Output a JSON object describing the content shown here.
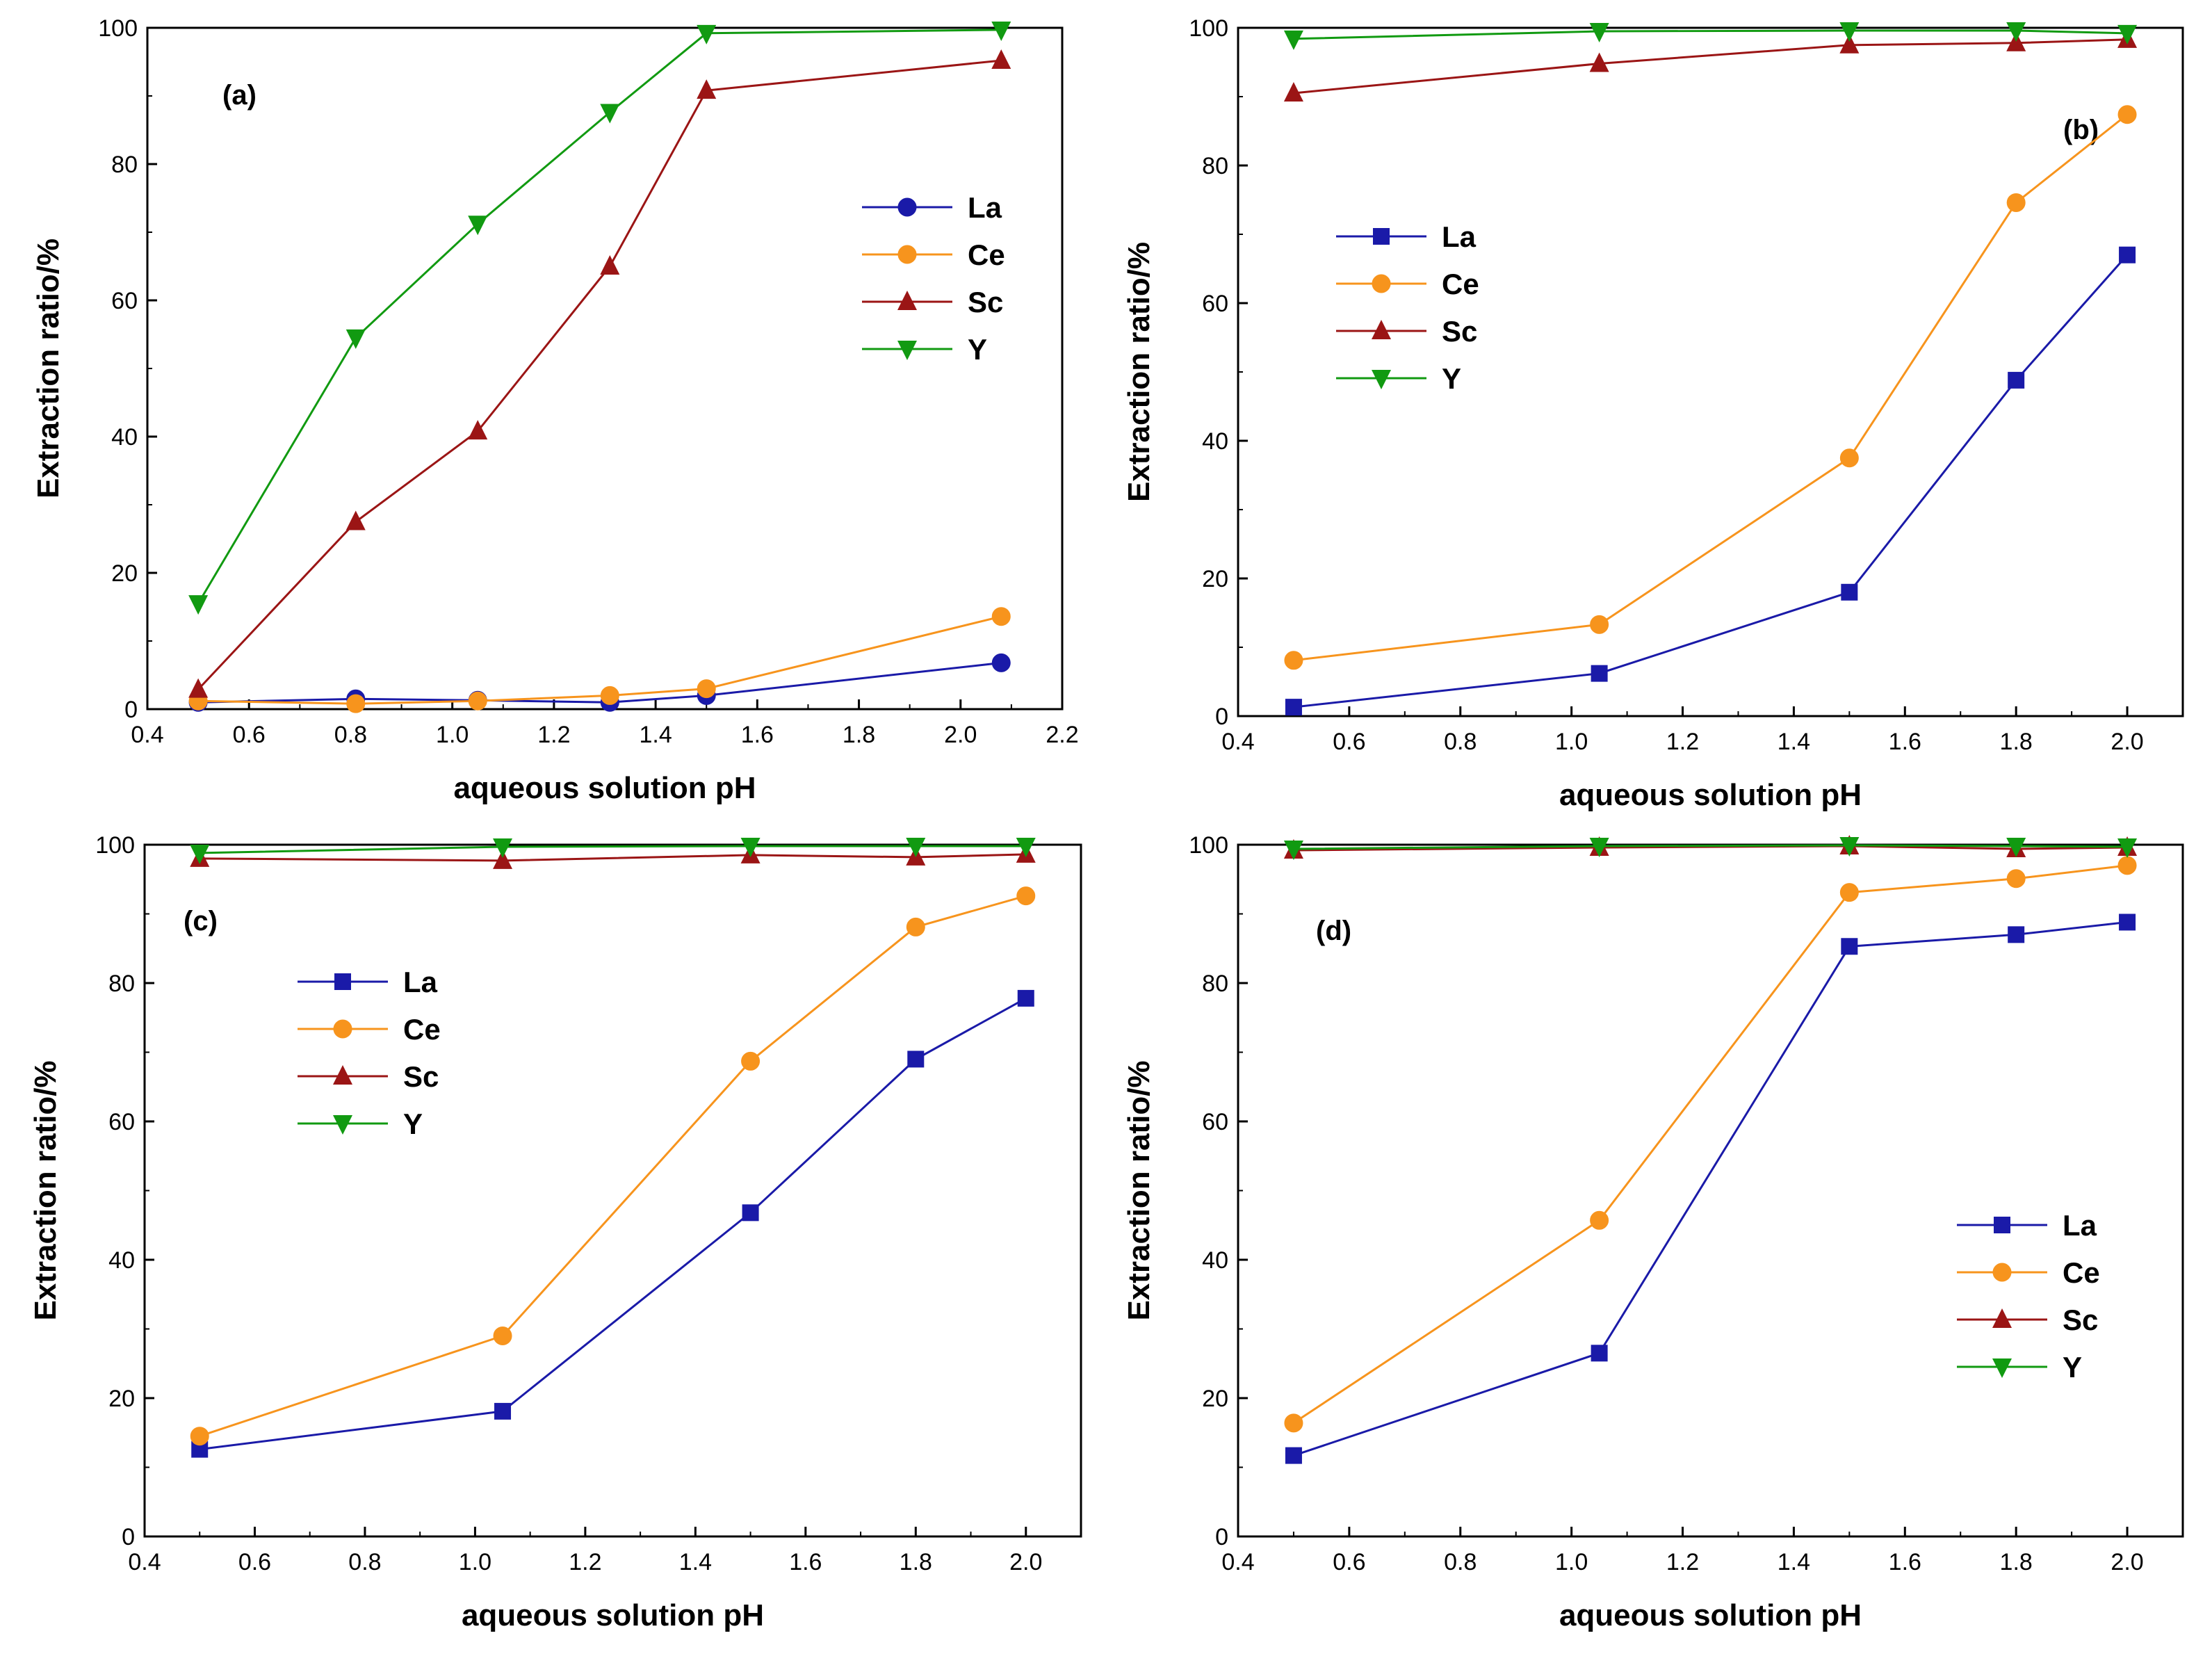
{
  "chart_data": [
    {
      "type": "line",
      "panel_label": "(a)",
      "xlabel": "aqueous solution pH",
      "ylabel": "Extraction ratio/%",
      "xlim": [
        0.4,
        2.2
      ],
      "ylim": [
        0,
        100
      ],
      "x_ticks": [
        "0.4",
        "0.6",
        "0.8",
        "1.0",
        "1.2",
        "1.4",
        "1.6",
        "1.8",
        "2.0",
        "2.2"
      ],
      "y_ticks": [
        "0",
        "20",
        "40",
        "60",
        "80",
        "100"
      ],
      "legend_position": "upper-right",
      "series": [
        {
          "name": "La",
          "marker": "circle",
          "x": [
            0.5,
            0.81,
            1.05,
            1.31,
            1.5,
            2.08
          ],
          "values": [
            1.0,
            1.5,
            1.3,
            1.0,
            2.0,
            6.8
          ]
        },
        {
          "name": "Ce",
          "marker": "circle",
          "x": [
            0.5,
            0.81,
            1.05,
            1.31,
            1.5,
            2.08
          ],
          "values": [
            1.2,
            0.8,
            1.2,
            2.0,
            3.0,
            13.6
          ]
        },
        {
          "name": "Sc",
          "marker": "triangle-up",
          "x": [
            0.5,
            0.81,
            1.05,
            1.31,
            1.5,
            2.08
          ],
          "values": [
            2.9,
            27.5,
            40.8,
            65.0,
            90.8,
            95.2
          ]
        },
        {
          "name": "Y",
          "marker": "triangle-down",
          "x": [
            0.5,
            0.81,
            1.05,
            1.31,
            1.5,
            2.08
          ],
          "values": [
            15.5,
            54.5,
            71.2,
            87.6,
            99.2,
            99.7
          ]
        }
      ]
    },
    {
      "type": "line",
      "panel_label": "(b)",
      "xlabel": "aqueous solution pH",
      "ylabel": "Extraction ratio/%",
      "xlim": [
        0.4,
        2.1
      ],
      "ylim": [
        0,
        100
      ],
      "x_ticks": [
        "0.4",
        "0.6",
        "0.8",
        "1.0",
        "1.2",
        "1.4",
        "1.6",
        "1.8",
        "2.0"
      ],
      "y_ticks": [
        "0",
        "20",
        "40",
        "60",
        "80",
        "100"
      ],
      "legend_position": "middle-left",
      "series": [
        {
          "name": "La",
          "marker": "square",
          "x": [
            0.5,
            1.05,
            1.5,
            1.8,
            2.0
          ],
          "values": [
            1.3,
            6.2,
            18.0,
            48.8,
            67.0
          ]
        },
        {
          "name": "Ce",
          "marker": "circle",
          "x": [
            0.5,
            1.05,
            1.5,
            1.8,
            2.0
          ],
          "values": [
            8.1,
            13.3,
            37.5,
            74.6,
            87.4
          ]
        },
        {
          "name": "Sc",
          "marker": "triangle-up",
          "x": [
            0.5,
            1.05,
            1.5,
            1.8,
            2.0
          ],
          "values": [
            90.5,
            94.8,
            97.5,
            97.8,
            98.3
          ]
        },
        {
          "name": "Y",
          "marker": "triangle-down",
          "x": [
            0.5,
            1.05,
            1.5,
            1.8,
            2.0
          ],
          "values": [
            98.4,
            99.5,
            99.6,
            99.6,
            99.2
          ]
        }
      ]
    },
    {
      "type": "line",
      "panel_label": "(c)",
      "xlabel": "aqueous solution pH",
      "ylabel": "Extraction ratio/%",
      "xlim": [
        0.4,
        2.1
      ],
      "ylim": [
        0,
        100
      ],
      "x_ticks": [
        "0.4",
        "0.6",
        "0.8",
        "1.0",
        "1.2",
        "1.4",
        "1.6",
        "1.8",
        "2.0"
      ],
      "y_ticks": [
        "0",
        "20",
        "40",
        "60",
        "80",
        "100"
      ],
      "legend_position": "upper-left",
      "series": [
        {
          "name": "La",
          "marker": "square",
          "x": [
            0.5,
            1.05,
            1.5,
            1.8,
            2.0
          ],
          "values": [
            12.6,
            18.1,
            46.8,
            69.0,
            77.8
          ]
        },
        {
          "name": "Ce",
          "marker": "circle",
          "x": [
            0.5,
            1.05,
            1.5,
            1.8,
            2.0
          ],
          "values": [
            14.5,
            29.0,
            68.7,
            88.1,
            92.6
          ]
        },
        {
          "name": "Sc",
          "marker": "triangle-up",
          "x": [
            0.5,
            1.05,
            1.5,
            1.8,
            2.0
          ],
          "values": [
            98.0,
            97.7,
            98.5,
            98.2,
            98.6
          ]
        },
        {
          "name": "Y",
          "marker": "triangle-down",
          "x": [
            0.5,
            1.05,
            1.5,
            1.8,
            2.0
          ],
          "values": [
            98.8,
            99.7,
            99.8,
            99.8,
            99.8
          ]
        }
      ]
    },
    {
      "type": "line",
      "panel_label": "(d)",
      "xlabel": "aqueous solution pH",
      "ylabel": "Extraction ratio/%",
      "xlim": [
        0.4,
        2.1
      ],
      "ylim": [
        0,
        100
      ],
      "x_ticks": [
        "0.4",
        "0.6",
        "0.8",
        "1.0",
        "1.2",
        "1.4",
        "1.6",
        "1.8",
        "2.0"
      ],
      "y_ticks": [
        "0",
        "20",
        "40",
        "60",
        "80",
        "100"
      ],
      "legend_position": "lower-right",
      "series": [
        {
          "name": "La",
          "marker": "square",
          "x": [
            0.5,
            1.05,
            1.5,
            1.8,
            2.0
          ],
          "values": [
            11.7,
            26.5,
            85.3,
            87.0,
            88.8
          ]
        },
        {
          "name": "Ce",
          "marker": "circle",
          "x": [
            0.5,
            1.05,
            1.5,
            1.8,
            2.0
          ],
          "values": [
            16.4,
            45.7,
            93.1,
            95.1,
            97.0
          ]
        },
        {
          "name": "Sc",
          "marker": "triangle-up",
          "x": [
            0.5,
            1.05,
            1.5,
            1.8,
            2.0
          ],
          "values": [
            99.2,
            99.6,
            99.8,
            99.4,
            99.6
          ]
        },
        {
          "name": "Y",
          "marker": "triangle-down",
          "x": [
            0.5,
            1.05,
            1.5,
            1.8,
            2.0
          ],
          "values": [
            99.4,
            99.8,
            99.9,
            99.8,
            99.7
          ]
        }
      ]
    }
  ],
  "colors": {
    "La": "#1a1aa8",
    "Ce": "#f7941d",
    "Sc": "#9b1515",
    "Y": "#119a11"
  }
}
